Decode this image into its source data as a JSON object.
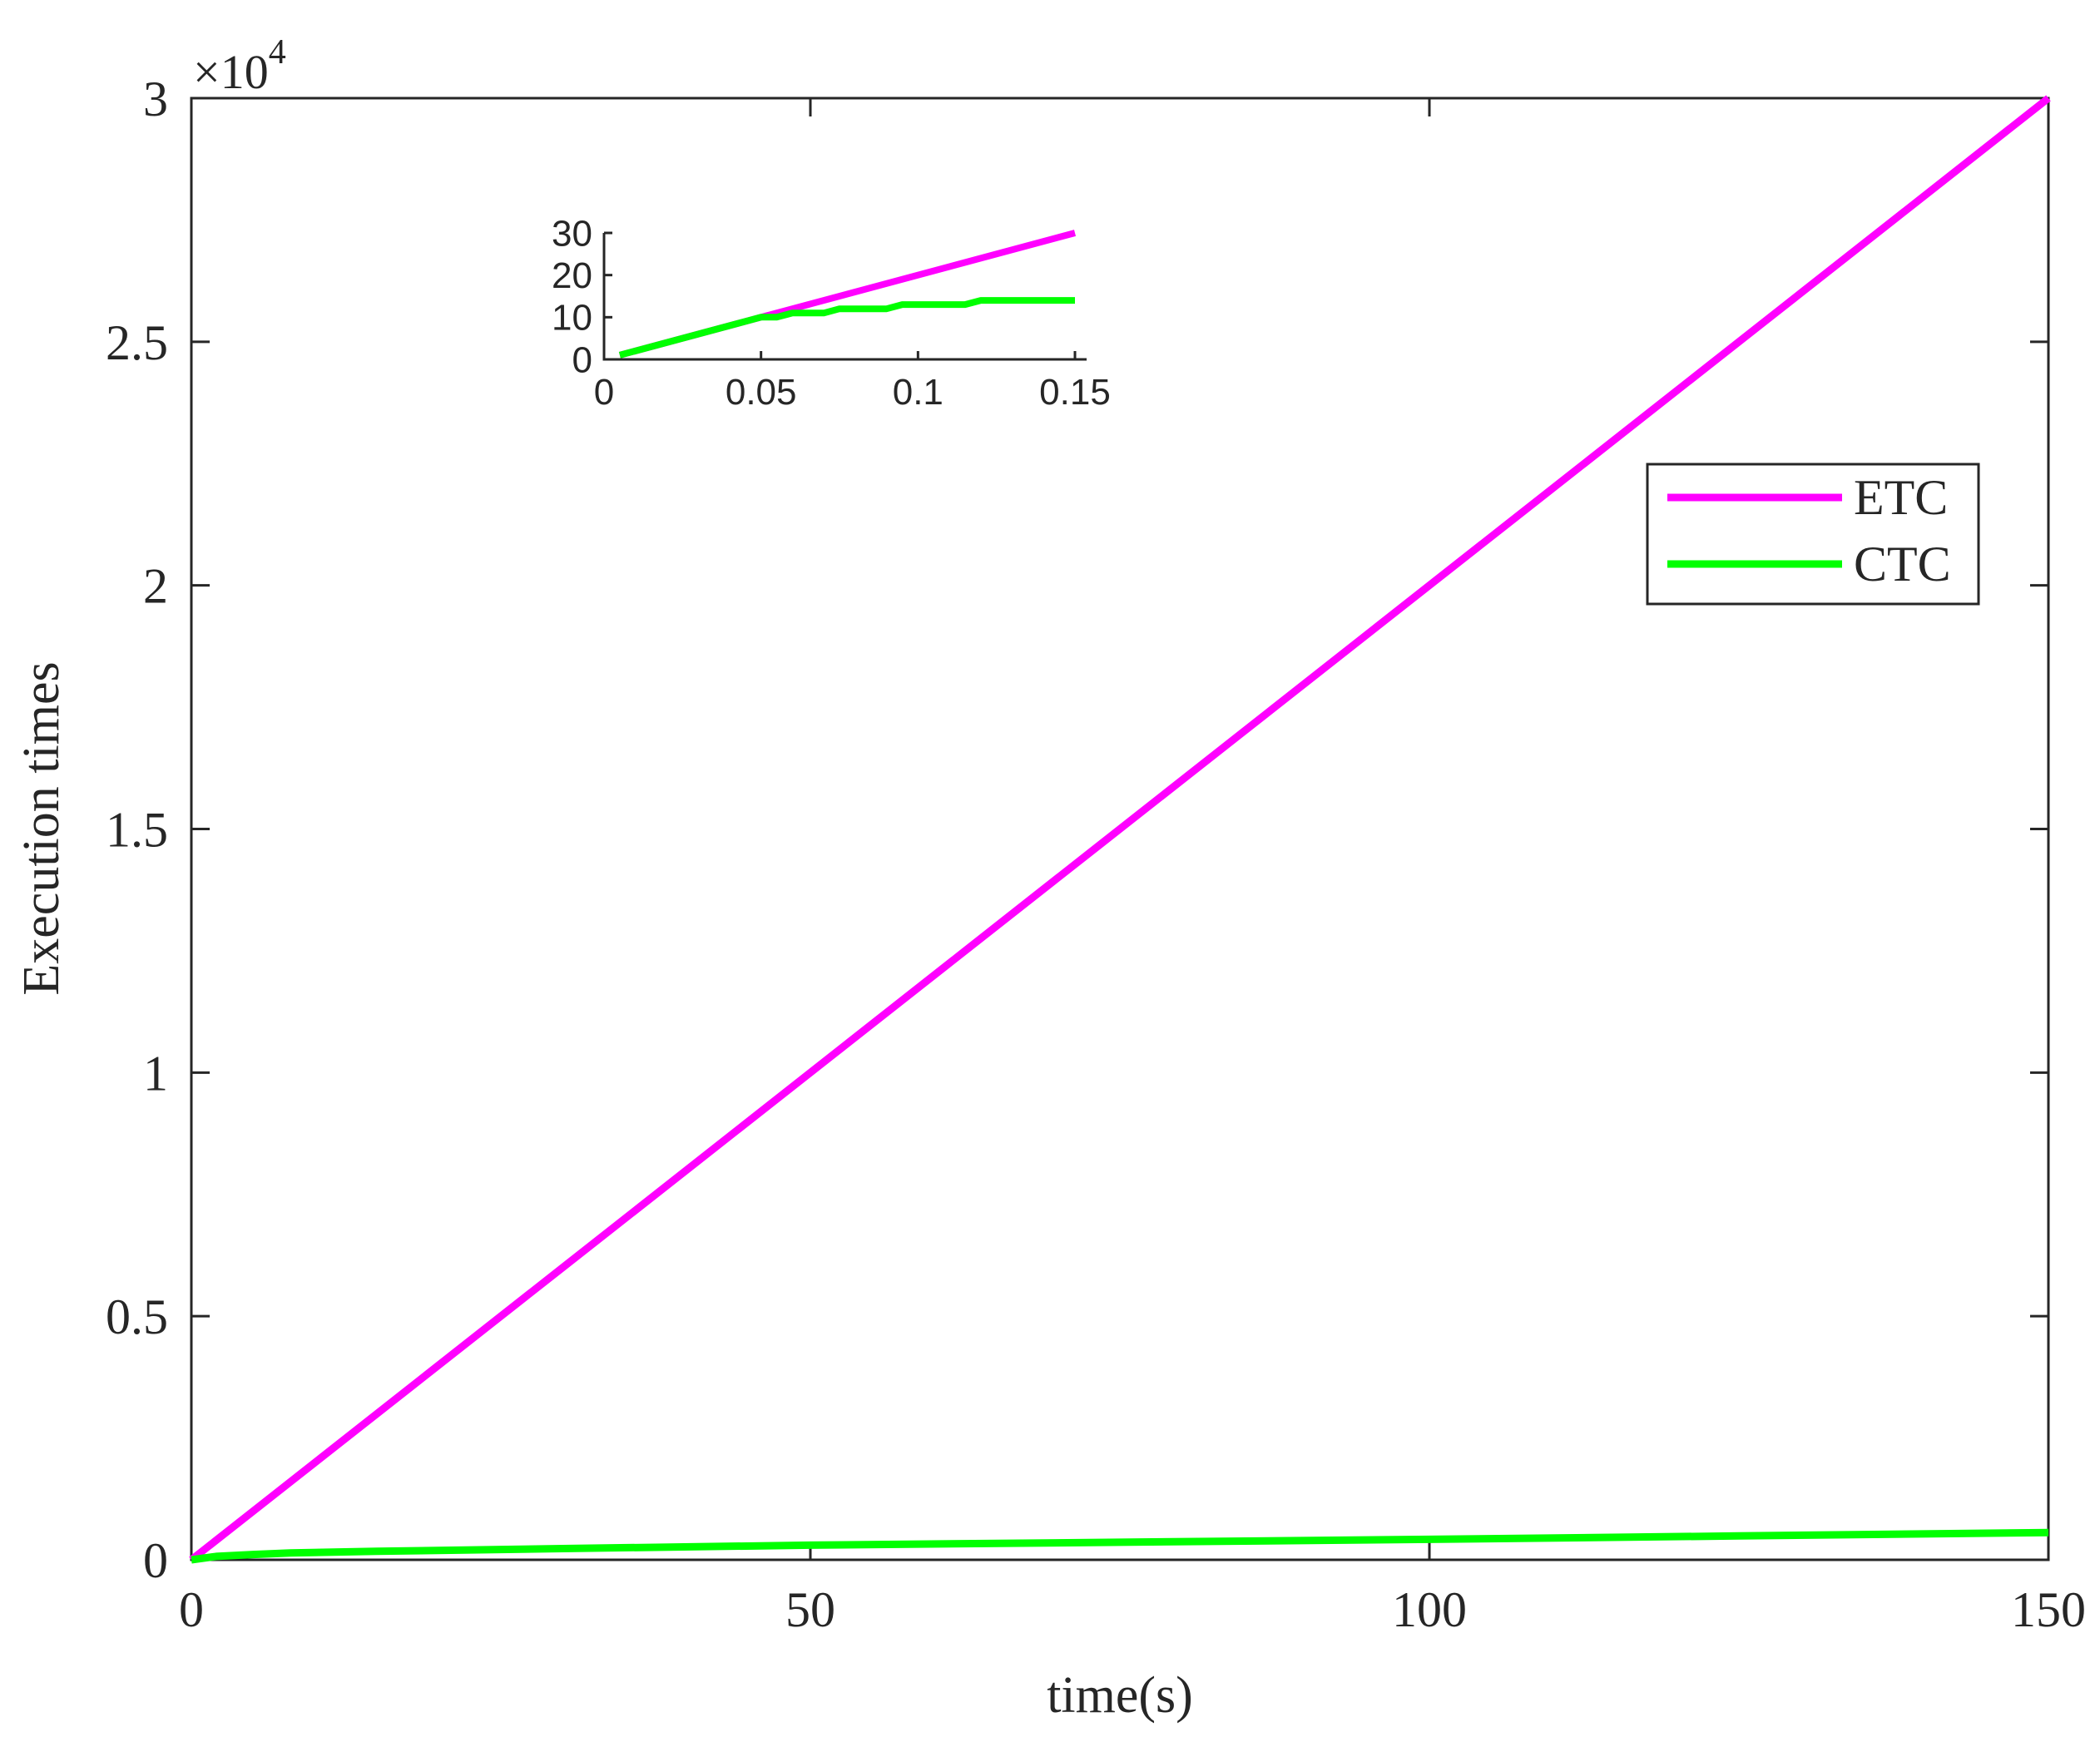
{
  "chart_data": [
    {
      "type": "line",
      "title": "",
      "xlabel": "time(s)",
      "ylabel": "Execution times",
      "xlim": [
        0,
        150
      ],
      "ylim": [
        0,
        30000
      ],
      "y_exponent_label": "×10",
      "y_exponent_power": "4",
      "xticks": [
        0,
        50,
        100,
        150
      ],
      "xtick_labels": [
        "0",
        "50",
        "100",
        "150"
      ],
      "yticks": [
        0,
        5000,
        10000,
        15000,
        20000,
        25000,
        30000
      ],
      "ytick_labels": [
        "0",
        "0.5",
        "1",
        "1.5",
        "2",
        "2.5",
        "3"
      ],
      "grid": false,
      "legend_position": "right",
      "series": [
        {
          "name": "ETC",
          "color": "#ff00ff",
          "x": [
            0,
            150
          ],
          "y": [
            0,
            30000
          ]
        },
        {
          "name": "CTC",
          "color": "#00ff00",
          "x": [
            0,
            2,
            5,
            8,
            15,
            30,
            50,
            75,
            100,
            125,
            150
          ],
          "y": [
            0,
            70,
            110,
            140,
            175,
            230,
            300,
            360,
            420,
            490,
            560
          ]
        }
      ]
    },
    {
      "type": "line",
      "title": "",
      "xlabel": "",
      "ylabel": "",
      "xlim": [
        0,
        0.15
      ],
      "ylim": [
        0,
        30
      ],
      "xticks": [
        0,
        0.05,
        0.1,
        0.15
      ],
      "xtick_labels": [
        "0",
        "0.05",
        "0.1",
        "0.15"
      ],
      "yticks": [
        0,
        10,
        20,
        30
      ],
      "ytick_labels": [
        "0",
        "10",
        "20",
        "30"
      ],
      "grid": false,
      "series": [
        {
          "color": "#ff00ff",
          "x": [
            0.005,
            0.15
          ],
          "y": [
            1,
            30
          ]
        },
        {
          "color": "#00ff00",
          "x": [
            0.005,
            0.05,
            0.055,
            0.06,
            0.07,
            0.075,
            0.09,
            0.095,
            0.115,
            0.12,
            0.15
          ],
          "y": [
            1,
            10,
            10,
            11,
            11,
            12,
            12,
            13,
            13,
            14,
            14
          ]
        }
      ]
    }
  ]
}
